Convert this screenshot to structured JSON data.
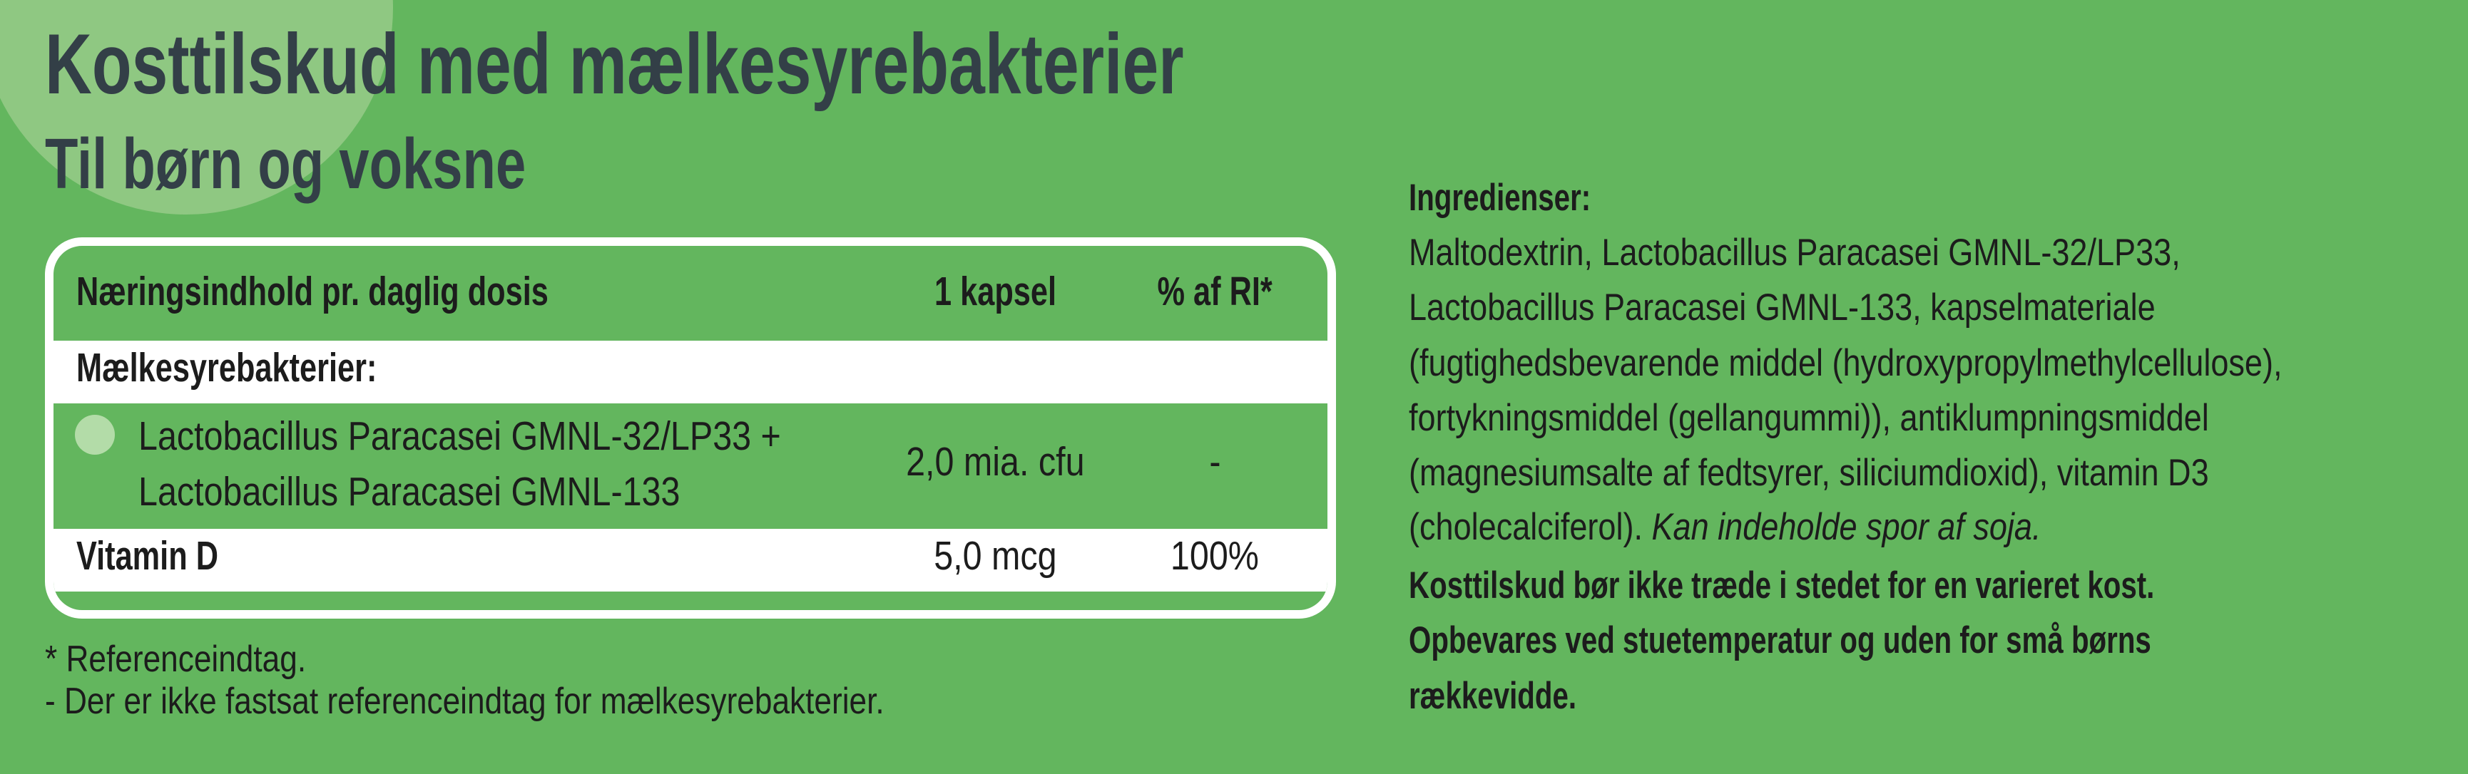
{
  "colors": {
    "background": "#63b65e",
    "title": "#333f47",
    "circle": "#8fc882",
    "bullet": "#b3dca8",
    "table_border": "#ffffff"
  },
  "header": {
    "title": "Kosttilskud med mælkesyrebakterier",
    "subtitle": "Til børn og voksne"
  },
  "table": {
    "columns": [
      "Næringsindhold pr. daglig dosis",
      "1 kapsel",
      "% af RI*"
    ],
    "section_label": "Mælkesyrebakterier:",
    "rows": [
      {
        "name_lines": [
          "Lactobacillus Paracasei GMNL-32/LP33 +",
          "Lactobacillus Paracasei GMNL-133"
        ],
        "amount": "2,0 mia. cfu",
        "ri": "-"
      },
      {
        "name": "Vitamin D",
        "amount": "5,0 mcg",
        "ri": "100%"
      }
    ]
  },
  "footnotes": [
    "* Referenceindtag.",
    "- Der er ikke fastsat referenceindtag for mælkesyrebakterier."
  ],
  "ingredients": {
    "heading": "Ingredienser:",
    "lines": [
      "Maltodextrin, Lactobacillus Paracasei GMNL-32/LP33,",
      "Lactobacillus Paracasei GMNL-133, kapselmateriale",
      "(fugtighedsbevarende middel (hydroxypropylmethylcellulose),",
      "fortykningsmiddel (gellangummi)), antiklumpningsmiddel",
      "(magnesiumsalte af fedtsyrer, siliciumdioxid), vitamin D3"
    ],
    "last_line_plain": "(cholecalciferol). ",
    "last_line_italic": "Kan indeholde spor af soja.",
    "warnings": [
      "Kosttilskud bør ikke træde i stedet for en varieret kost.",
      "Opbevares ved stuetemperatur og uden for små børns",
      "rækkevidde."
    ]
  }
}
